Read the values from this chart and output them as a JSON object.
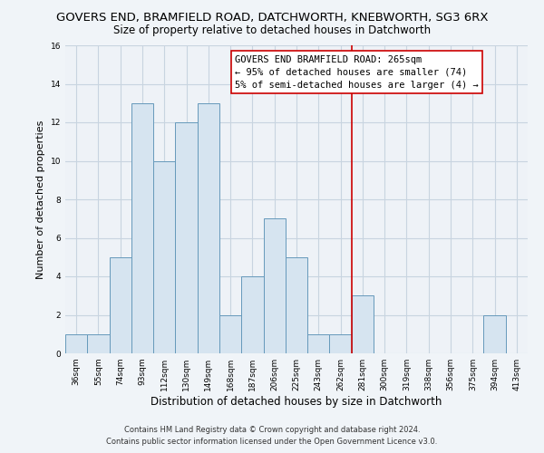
{
  "title": "GOVERS END, BRAMFIELD ROAD, DATCHWORTH, KNEBWORTH, SG3 6RX",
  "subtitle": "Size of property relative to detached houses in Datchworth",
  "xlabel": "Distribution of detached houses by size in Datchworth",
  "ylabel": "Number of detached properties",
  "bar_labels": [
    "36sqm",
    "55sqm",
    "74sqm",
    "93sqm",
    "112sqm",
    "130sqm",
    "149sqm",
    "168sqm",
    "187sqm",
    "206sqm",
    "225sqm",
    "243sqm",
    "262sqm",
    "281sqm",
    "300sqm",
    "319sqm",
    "338sqm",
    "356sqm",
    "375sqm",
    "394sqm",
    "413sqm"
  ],
  "bar_values": [
    1,
    1,
    5,
    13,
    10,
    12,
    13,
    2,
    4,
    7,
    5,
    1,
    1,
    3,
    0,
    0,
    0,
    0,
    0,
    2,
    0
  ],
  "bar_color": "#d6e4f0",
  "bar_edge_color": "#6699bb",
  "vline_color": "#cc0000",
  "annotation_title": "GOVERS END BRAMFIELD ROAD: 265sqm",
  "annotation_line1": "← 95% of detached houses are smaller (74)",
  "annotation_line2": "5% of semi-detached houses are larger (4) →",
  "annotation_box_color": "#ffffff",
  "annotation_box_edge": "#cc0000",
  "ylim": [
    0,
    16
  ],
  "yticks": [
    0,
    2,
    4,
    6,
    8,
    10,
    12,
    14,
    16
  ],
  "footer_line1": "Contains HM Land Registry data © Crown copyright and database right 2024.",
  "footer_line2": "Contains public sector information licensed under the Open Government Licence v3.0.",
  "bg_color": "#f0f4f8",
  "plot_bg_color": "#eef2f7",
  "grid_color": "#c8d4e0",
  "title_fontsize": 9.5,
  "subtitle_fontsize": 8.5,
  "xlabel_fontsize": 8.5,
  "ylabel_fontsize": 8,
  "tick_fontsize": 6.5,
  "footer_fontsize": 6,
  "ann_fontsize": 7.5
}
